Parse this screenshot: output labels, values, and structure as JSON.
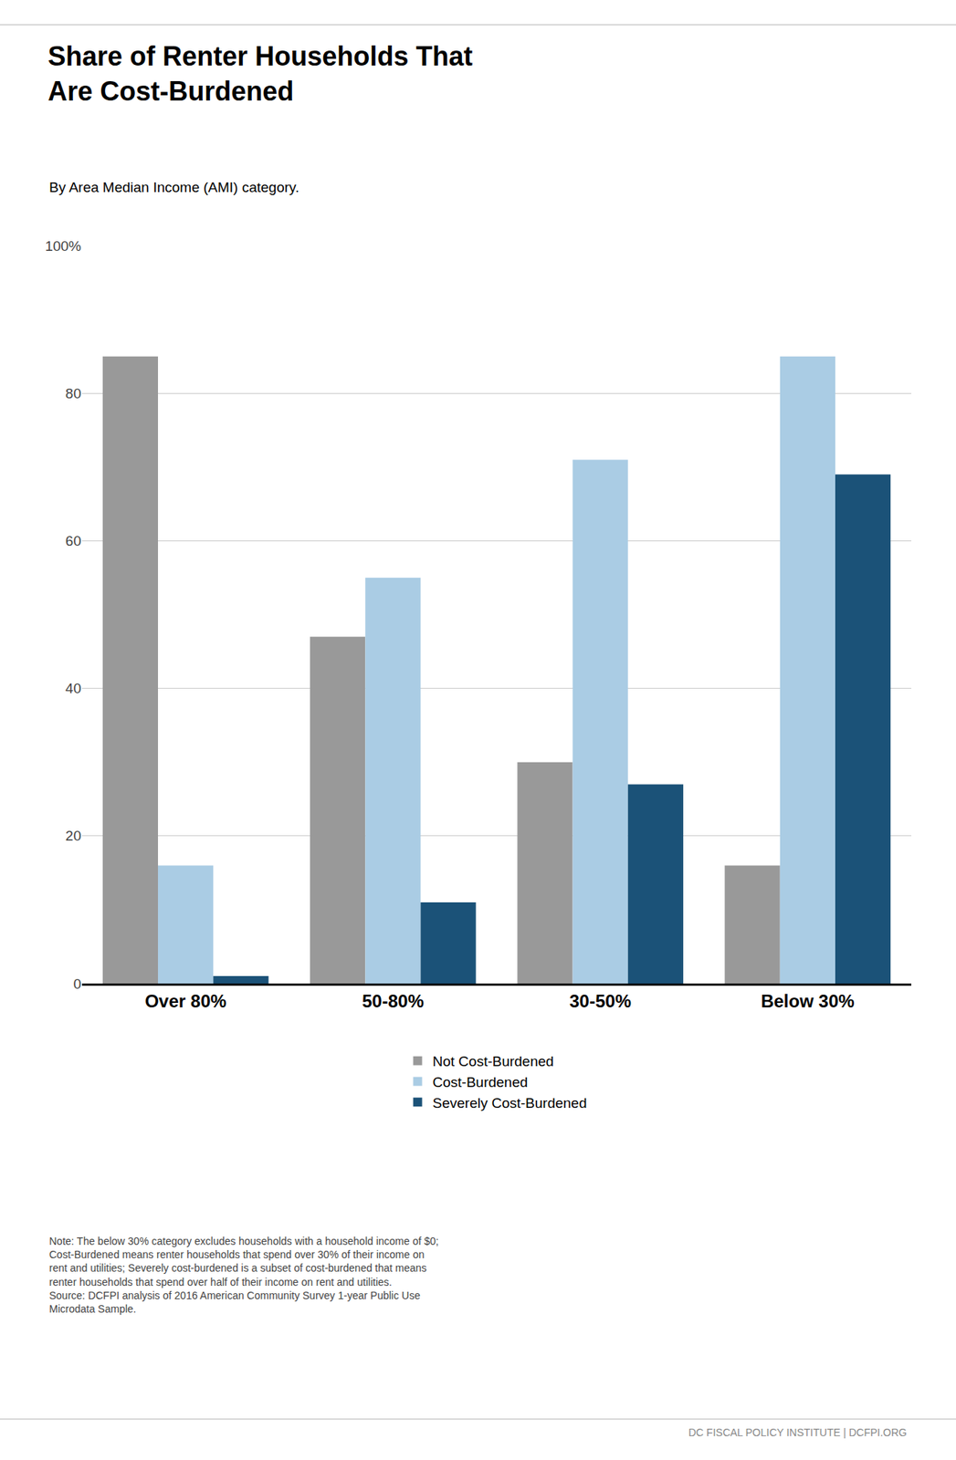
{
  "chart_data": {
    "type": "bar",
    "title": "Share of Renter Households That\nAre Cost-Burdened",
    "subtitle": "By Area Median Income (AMI) category.",
    "categories": [
      "Over 80%",
      "50-80%",
      "30-50%",
      "Below 30%"
    ],
    "series": [
      {
        "name": "Not Cost-Burdened",
        "color": "#999999",
        "values": [
          85,
          47,
          30,
          16
        ]
      },
      {
        "name": "Cost-Burdened",
        "color": "#aacce4",
        "values": [
          16,
          55,
          71,
          85
        ]
      },
      {
        "name": "Severely Cost-Burdened",
        "color": "#1b5278",
        "values": [
          1,
          11,
          27,
          69
        ]
      }
    ],
    "ylim": [
      0,
      100
    ],
    "yticks": [
      0,
      20,
      40,
      60,
      80,
      {
        "value": 100,
        "label": "100%"
      }
    ],
    "grid": true,
    "legend": "bottom",
    "annotations": [
      "Note: The below 30% category excludes households with a household income of $0;\nCost-Burdened means renter households that spend over 30% of their income on\nrent and utilities; Severely cost-burdened is a subset of cost-burdened that means\nrenter households that spend over half of their income on rent and utilities.\nSource: DCFPI analysis of 2016 American Community Survey 1-year Public Use\nMicrodata Sample.",
      "DC FISCAL POLICY INSTITUTE | DCFPI.ORG"
    ]
  }
}
